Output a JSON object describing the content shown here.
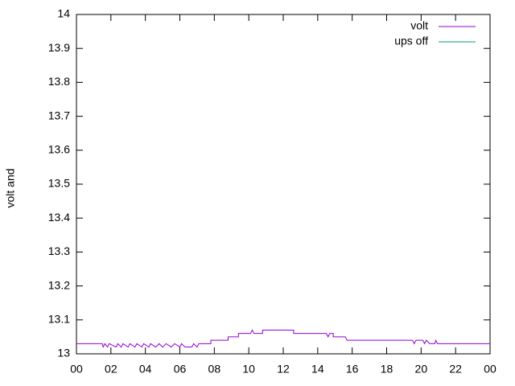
{
  "chart_data": {
    "type": "line",
    "ylabel": "volt and",
    "x": [
      0,
      1.5,
      1.55,
      1.65,
      1.8,
      1.9,
      2.3,
      2.4,
      2.6,
      2.7,
      3.0,
      3.1,
      3.4,
      3.5,
      3.8,
      3.9,
      4.2,
      4.3,
      4.6,
      4.8,
      5.0,
      5.2,
      5.5,
      5.7,
      6.0,
      6.1,
      6.3,
      6.7,
      6.8,
      7.0,
      7.1,
      7.8,
      7.8,
      8.8,
      8.8,
      9.4,
      9.4,
      10.1,
      10.2,
      10.3,
      10.8,
      10.8,
      12.6,
      12.6,
      14.5,
      14.6,
      14.7,
      14.9,
      14.9,
      15.6,
      15.7,
      19.5,
      19.6,
      19.7,
      20.1,
      20.2,
      20.3,
      20.5,
      20.8,
      20.85,
      20.95,
      24
    ],
    "series": [
      {
        "name": "volt",
        "color": "#9400d3",
        "values": [
          13.03,
          13.03,
          13.02,
          13.03,
          13.02,
          13.03,
          13.02,
          13.03,
          13.02,
          13.03,
          13.02,
          13.03,
          13.02,
          13.03,
          13.02,
          13.03,
          13.02,
          13.03,
          13.02,
          13.03,
          13.02,
          13.03,
          13.02,
          13.03,
          13.02,
          13.03,
          13.02,
          13.02,
          13.03,
          13.02,
          13.03,
          13.03,
          13.04,
          13.04,
          13.05,
          13.05,
          13.06,
          13.06,
          13.07,
          13.06,
          13.06,
          13.07,
          13.07,
          13.06,
          13.06,
          13.05,
          13.06,
          13.06,
          13.05,
          13.05,
          13.04,
          13.04,
          13.03,
          13.04,
          13.04,
          13.03,
          13.04,
          13.03,
          13.03,
          13.04,
          13.03,
          13.03
        ]
      },
      {
        "name": "ups off",
        "color": "#009e73",
        "values": [
          null,
          null,
          null,
          null,
          null,
          null,
          null,
          null,
          null,
          null,
          null,
          null,
          null,
          null,
          null,
          null,
          null,
          null,
          null,
          null,
          null,
          null,
          null,
          null,
          null,
          null,
          null,
          null,
          null,
          null,
          null,
          null,
          null,
          null,
          null,
          null,
          null,
          null,
          null,
          null,
          null,
          null,
          null,
          null,
          null,
          null,
          null,
          null,
          null,
          null,
          null,
          null,
          null,
          null,
          null,
          null,
          null,
          null,
          null,
          null,
          null,
          null
        ]
      }
    ],
    "xlim": [
      0,
      24
    ],
    "xticks": [
      {
        "value": 0,
        "label": "00"
      },
      {
        "value": 2,
        "label": "02"
      },
      {
        "value": 4,
        "label": "04"
      },
      {
        "value": 6,
        "label": "06"
      },
      {
        "value": 8,
        "label": "08"
      },
      10,
      12,
      14,
      16,
      18,
      20,
      22,
      {
        "value": 24,
        "label": "00"
      }
    ],
    "ylim": [
      13,
      14
    ],
    "yticks": [
      13,
      13.1,
      13.2,
      13.3,
      13.4,
      13.5,
      13.6,
      13.7,
      13.8,
      13.9,
      14
    ],
    "legend": "top-right"
  }
}
